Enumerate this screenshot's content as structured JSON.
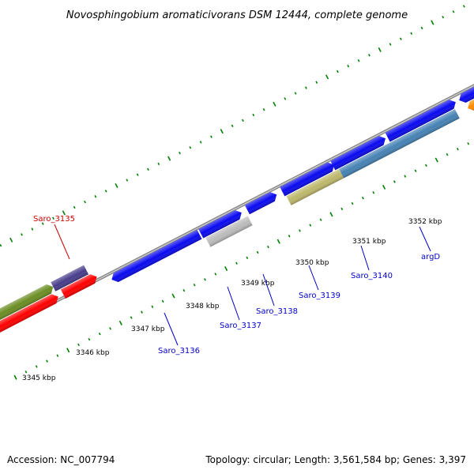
{
  "title": "Novosphingobium aromaticivorans DSM 12444, complete genome",
  "footer": {
    "accession": "Accession: NC_007794",
    "topology": "Topology: circular; Length: 3,561,584 bp; Genes: 3,397"
  },
  "ticks": [
    "3345 kbp",
    "3346 kbp",
    "3347 kbp",
    "3348 kbp",
    "3349 kbp",
    "3350 kbp",
    "3351 kbp",
    "3352 kbp"
  ],
  "genes": [
    {
      "name": "Saro_3135",
      "color": "#cc0000"
    },
    {
      "name": "Saro_3136",
      "color": "#0000cc"
    },
    {
      "name": "Saro_3137",
      "color": "#0000cc"
    },
    {
      "name": "Saro_3138",
      "color": "#0000cc"
    },
    {
      "name": "Saro_3139",
      "color": "#0000cc"
    },
    {
      "name": "Saro_3140",
      "color": "#0000cc"
    },
    {
      "name": "argD",
      "color": "#0000cc"
    }
  ],
  "colors": {
    "cds": "#0a0af0",
    "rna": "#ff0000",
    "green": "#6b8e23",
    "slate": "#483d8b",
    "gray": "#bbbbbb",
    "khaki": "#bdb76b",
    "steel": "#4682b4",
    "orange": "#ff8c00",
    "axis": "#888888",
    "dots": "#008000"
  }
}
